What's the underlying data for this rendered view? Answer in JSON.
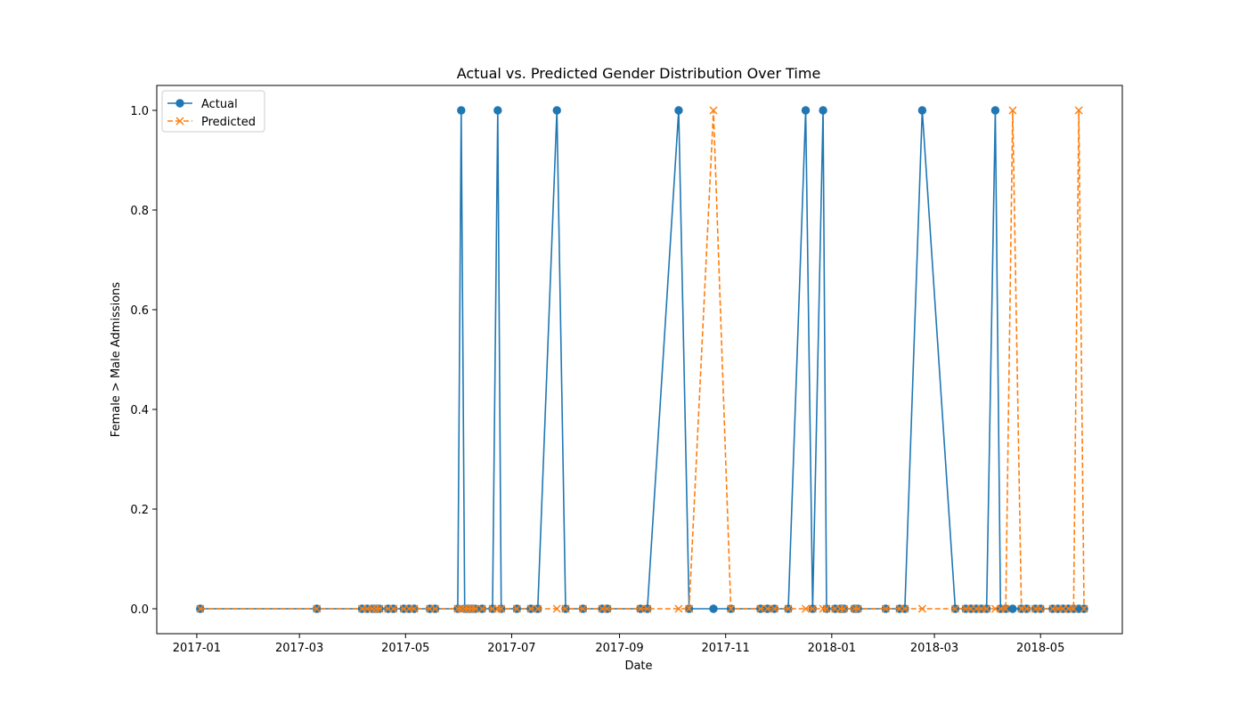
{
  "chart_data": {
    "type": "line",
    "title": "Actual vs. Predicted Gender Distribution Over Time",
    "xlabel": "Date",
    "ylabel": "Female > Male Admissions",
    "xlim": [
      "2016-12-09",
      "2018-06-17"
    ],
    "ylim": [
      -0.05,
      1.05
    ],
    "x_ticks": [
      "2017-01",
      "2017-03",
      "2017-05",
      "2017-07",
      "2017-09",
      "2017-11",
      "2018-01",
      "2018-03",
      "2018-05"
    ],
    "y_ticks": [
      "0.0",
      "0.2",
      "0.4",
      "0.6",
      "0.8",
      "1.0"
    ],
    "grid": false,
    "legend": {
      "placement": "top-left"
    },
    "colors": {
      "actual": "#1f77b4",
      "predicted": "#ff7f0e"
    },
    "series": [
      {
        "name": "Actual",
        "marker": "circle",
        "line_style": "solid",
        "points": [
          [
            "2017-01-03",
            0
          ],
          [
            "2017-03-11",
            0
          ],
          [
            "2017-04-06",
            0
          ],
          [
            "2017-04-09",
            0
          ],
          [
            "2017-04-12",
            0
          ],
          [
            "2017-04-14",
            0
          ],
          [
            "2017-04-16",
            0
          ],
          [
            "2017-04-21",
            0
          ],
          [
            "2017-04-24",
            0
          ],
          [
            "2017-04-30",
            0
          ],
          [
            "2017-05-03",
            0
          ],
          [
            "2017-05-06",
            0
          ],
          [
            "2017-05-15",
            0
          ],
          [
            "2017-05-18",
            0
          ],
          [
            "2017-05-31",
            0
          ],
          [
            "2017-06-02",
            1
          ],
          [
            "2017-06-04",
            0
          ],
          [
            "2017-06-06",
            0
          ],
          [
            "2017-06-08",
            0
          ],
          [
            "2017-06-10",
            0
          ],
          [
            "2017-06-14",
            0
          ],
          [
            "2017-06-20",
            0
          ],
          [
            "2017-06-23",
            1
          ],
          [
            "2017-06-25",
            0
          ],
          [
            "2017-07-04",
            0
          ],
          [
            "2017-07-12",
            0
          ],
          [
            "2017-07-16",
            0
          ],
          [
            "2017-07-27",
            1
          ],
          [
            "2017-08-01",
            0
          ],
          [
            "2017-08-11",
            0
          ],
          [
            "2017-08-22",
            0
          ],
          [
            "2017-08-25",
            0
          ],
          [
            "2017-09-13",
            0
          ],
          [
            "2017-09-17",
            0
          ],
          [
            "2017-10-05",
            1
          ],
          [
            "2017-10-11",
            0
          ],
          [
            "2017-10-25",
            0
          ],
          [
            "2017-11-04",
            0
          ],
          [
            "2017-11-21",
            0
          ],
          [
            "2017-11-25",
            0
          ],
          [
            "2017-11-29",
            0
          ],
          [
            "2017-12-07",
            0
          ],
          [
            "2017-12-17",
            1
          ],
          [
            "2017-12-21",
            0
          ],
          [
            "2017-12-27",
            1
          ],
          [
            "2017-12-29",
            0
          ],
          [
            "2018-01-03",
            0
          ],
          [
            "2018-01-06",
            0
          ],
          [
            "2018-01-08",
            0
          ],
          [
            "2018-01-14",
            0
          ],
          [
            "2018-01-16",
            0
          ],
          [
            "2018-02-01",
            0
          ],
          [
            "2018-02-09",
            0
          ],
          [
            "2018-02-12",
            0
          ],
          [
            "2018-02-22",
            1
          ],
          [
            "2018-03-13",
            0
          ],
          [
            "2018-03-19",
            0
          ],
          [
            "2018-03-22",
            0
          ],
          [
            "2018-03-25",
            0
          ],
          [
            "2018-03-28",
            0
          ],
          [
            "2018-03-31",
            0
          ],
          [
            "2018-04-05",
            1
          ],
          [
            "2018-04-08",
            0
          ],
          [
            "2018-04-11",
            0
          ],
          [
            "2018-04-15",
            0
          ],
          [
            "2018-04-20",
            0
          ],
          [
            "2018-04-23",
            0
          ],
          [
            "2018-04-28",
            0
          ],
          [
            "2018-05-01",
            0
          ],
          [
            "2018-05-08",
            0
          ],
          [
            "2018-05-11",
            0
          ],
          [
            "2018-05-14",
            0
          ],
          [
            "2018-05-17",
            0
          ],
          [
            "2018-05-20",
            0
          ],
          [
            "2018-05-23",
            0
          ],
          [
            "2018-05-26",
            0
          ]
        ]
      },
      {
        "name": "Predicted",
        "marker": "x",
        "line_style": "dashed",
        "points": [
          [
            "2017-01-03",
            0
          ],
          [
            "2017-03-11",
            0
          ],
          [
            "2017-04-06",
            0
          ],
          [
            "2017-04-09",
            0
          ],
          [
            "2017-04-12",
            0
          ],
          [
            "2017-04-14",
            0
          ],
          [
            "2017-04-16",
            0
          ],
          [
            "2017-04-21",
            0
          ],
          [
            "2017-04-24",
            0
          ],
          [
            "2017-04-30",
            0
          ],
          [
            "2017-05-03",
            0
          ],
          [
            "2017-05-06",
            0
          ],
          [
            "2017-05-15",
            0
          ],
          [
            "2017-05-18",
            0
          ],
          [
            "2017-05-31",
            0
          ],
          [
            "2017-06-02",
            0
          ],
          [
            "2017-06-04",
            0
          ],
          [
            "2017-06-06",
            0
          ],
          [
            "2017-06-08",
            0
          ],
          [
            "2017-06-10",
            0
          ],
          [
            "2017-06-14",
            0
          ],
          [
            "2017-06-20",
            0
          ],
          [
            "2017-06-23",
            0
          ],
          [
            "2017-06-25",
            0
          ],
          [
            "2017-07-04",
            0
          ],
          [
            "2017-07-12",
            0
          ],
          [
            "2017-07-16",
            0
          ],
          [
            "2017-07-27",
            0
          ],
          [
            "2017-08-01",
            0
          ],
          [
            "2017-08-11",
            0
          ],
          [
            "2017-08-22",
            0
          ],
          [
            "2017-08-25",
            0
          ],
          [
            "2017-09-13",
            0
          ],
          [
            "2017-09-17",
            0
          ],
          [
            "2017-10-05",
            0
          ],
          [
            "2017-10-11",
            0
          ],
          [
            "2017-10-25",
            1
          ],
          [
            "2017-11-04",
            0
          ],
          [
            "2017-11-21",
            0
          ],
          [
            "2017-11-25",
            0
          ],
          [
            "2017-11-29",
            0
          ],
          [
            "2017-12-07",
            0
          ],
          [
            "2017-12-17",
            0
          ],
          [
            "2017-12-21",
            0
          ],
          [
            "2017-12-27",
            0
          ],
          [
            "2017-12-29",
            0
          ],
          [
            "2018-01-03",
            0
          ],
          [
            "2018-01-06",
            0
          ],
          [
            "2018-01-08",
            0
          ],
          [
            "2018-01-14",
            0
          ],
          [
            "2018-01-16",
            0
          ],
          [
            "2018-02-01",
            0
          ],
          [
            "2018-02-09",
            0
          ],
          [
            "2018-02-12",
            0
          ],
          [
            "2018-02-22",
            0
          ],
          [
            "2018-03-13",
            0
          ],
          [
            "2018-03-19",
            0
          ],
          [
            "2018-03-22",
            0
          ],
          [
            "2018-03-25",
            0
          ],
          [
            "2018-03-28",
            0
          ],
          [
            "2018-03-31",
            0
          ],
          [
            "2018-04-05",
            0
          ],
          [
            "2018-04-08",
            0
          ],
          [
            "2018-04-11",
            0
          ],
          [
            "2018-04-15",
            1
          ],
          [
            "2018-04-20",
            0
          ],
          [
            "2018-04-23",
            0
          ],
          [
            "2018-04-28",
            0
          ],
          [
            "2018-05-01",
            0
          ],
          [
            "2018-05-08",
            0
          ],
          [
            "2018-05-11",
            0
          ],
          [
            "2018-05-14",
            0
          ],
          [
            "2018-05-17",
            0
          ],
          [
            "2018-05-20",
            0
          ],
          [
            "2018-05-23",
            1
          ],
          [
            "2018-05-26",
            0
          ]
        ]
      }
    ]
  }
}
